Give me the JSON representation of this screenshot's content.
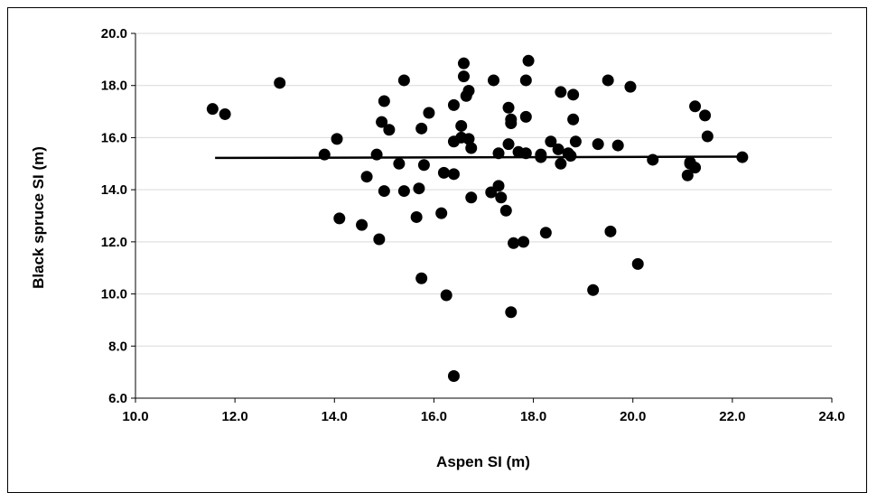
{
  "chart_data": {
    "type": "scatter",
    "title": "",
    "xlabel": "Aspen SI (m)",
    "ylabel": "Black spruce SI (m)",
    "xlim": [
      10.0,
      24.0
    ],
    "ylim": [
      6.0,
      20.0
    ],
    "x_ticks": [
      "10.0",
      "12.0",
      "14.0",
      "16.0",
      "18.0",
      "20.0",
      "22.0",
      "24.0"
    ],
    "y_ticks": [
      "6.0",
      "8.0",
      "10.0",
      "12.0",
      "14.0",
      "16.0",
      "18.0",
      "20.0"
    ],
    "grid": "horizontal",
    "legend": "none",
    "marker_color": "#000000",
    "grid_color": "#d9d9d9",
    "trend_line": {
      "x": [
        11.6,
        22.2
      ],
      "y": [
        15.22,
        15.27
      ]
    },
    "series": [
      {
        "points": [
          [
            11.55,
            17.1
          ],
          [
            11.8,
            16.9
          ],
          [
            12.9,
            18.1
          ],
          [
            13.8,
            15.35
          ],
          [
            14.05,
            15.95
          ],
          [
            14.1,
            12.9
          ],
          [
            14.55,
            12.65
          ],
          [
            14.65,
            14.5
          ],
          [
            14.85,
            15.35
          ],
          [
            14.9,
            12.1
          ],
          [
            14.95,
            16.6
          ],
          [
            15.0,
            17.4
          ],
          [
            15.0,
            13.95
          ],
          [
            15.1,
            16.3
          ],
          [
            15.3,
            15.0
          ],
          [
            15.4,
            18.2
          ],
          [
            15.4,
            13.95
          ],
          [
            15.65,
            12.95
          ],
          [
            15.7,
            14.05
          ],
          [
            15.75,
            16.35
          ],
          [
            15.75,
            10.6
          ],
          [
            15.8,
            14.95
          ],
          [
            15.9,
            16.95
          ],
          [
            16.15,
            13.1
          ],
          [
            16.2,
            14.65
          ],
          [
            16.25,
            9.95
          ],
          [
            16.4,
            17.25
          ],
          [
            16.4,
            15.85
          ],
          [
            16.4,
            14.6
          ],
          [
            16.4,
            6.85
          ],
          [
            16.55,
            16.45
          ],
          [
            16.55,
            16.0
          ],
          [
            16.6,
            18.85
          ],
          [
            16.6,
            18.35
          ],
          [
            16.65,
            17.6
          ],
          [
            16.7,
            15.95
          ],
          [
            16.7,
            17.8
          ],
          [
            16.75,
            15.6
          ],
          [
            16.75,
            13.7
          ],
          [
            17.15,
            13.9
          ],
          [
            17.2,
            18.2
          ],
          [
            17.3,
            15.4
          ],
          [
            17.3,
            14.15
          ],
          [
            17.35,
            13.7
          ],
          [
            17.45,
            13.2
          ],
          [
            17.5,
            17.15
          ],
          [
            17.5,
            15.75
          ],
          [
            17.55,
            16.7
          ],
          [
            17.55,
            16.55
          ],
          [
            17.55,
            9.3
          ],
          [
            17.6,
            11.95
          ],
          [
            17.7,
            15.45
          ],
          [
            17.8,
            12.0
          ],
          [
            17.85,
            16.8
          ],
          [
            17.85,
            15.4
          ],
          [
            17.85,
            18.2
          ],
          [
            17.9,
            18.95
          ],
          [
            18.15,
            15.25
          ],
          [
            18.15,
            15.35
          ],
          [
            18.25,
            12.35
          ],
          [
            18.35,
            15.85
          ],
          [
            18.5,
            15.55
          ],
          [
            18.55,
            17.75
          ],
          [
            18.55,
            15.0
          ],
          [
            18.7,
            15.4
          ],
          [
            18.75,
            15.3
          ],
          [
            18.8,
            16.7
          ],
          [
            18.8,
            17.65
          ],
          [
            18.85,
            15.85
          ],
          [
            19.2,
            10.15
          ],
          [
            19.3,
            15.75
          ],
          [
            19.5,
            18.2
          ],
          [
            19.55,
            12.4
          ],
          [
            19.7,
            15.7
          ],
          [
            19.95,
            17.95
          ],
          [
            20.1,
            11.15
          ],
          [
            20.4,
            15.15
          ],
          [
            21.1,
            14.55
          ],
          [
            21.15,
            15.05
          ],
          [
            21.15,
            15.0
          ],
          [
            21.25,
            17.2
          ],
          [
            21.25,
            14.85
          ],
          [
            21.45,
            16.85
          ],
          [
            21.5,
            16.05
          ],
          [
            22.2,
            15.25
          ]
        ]
      }
    ]
  }
}
